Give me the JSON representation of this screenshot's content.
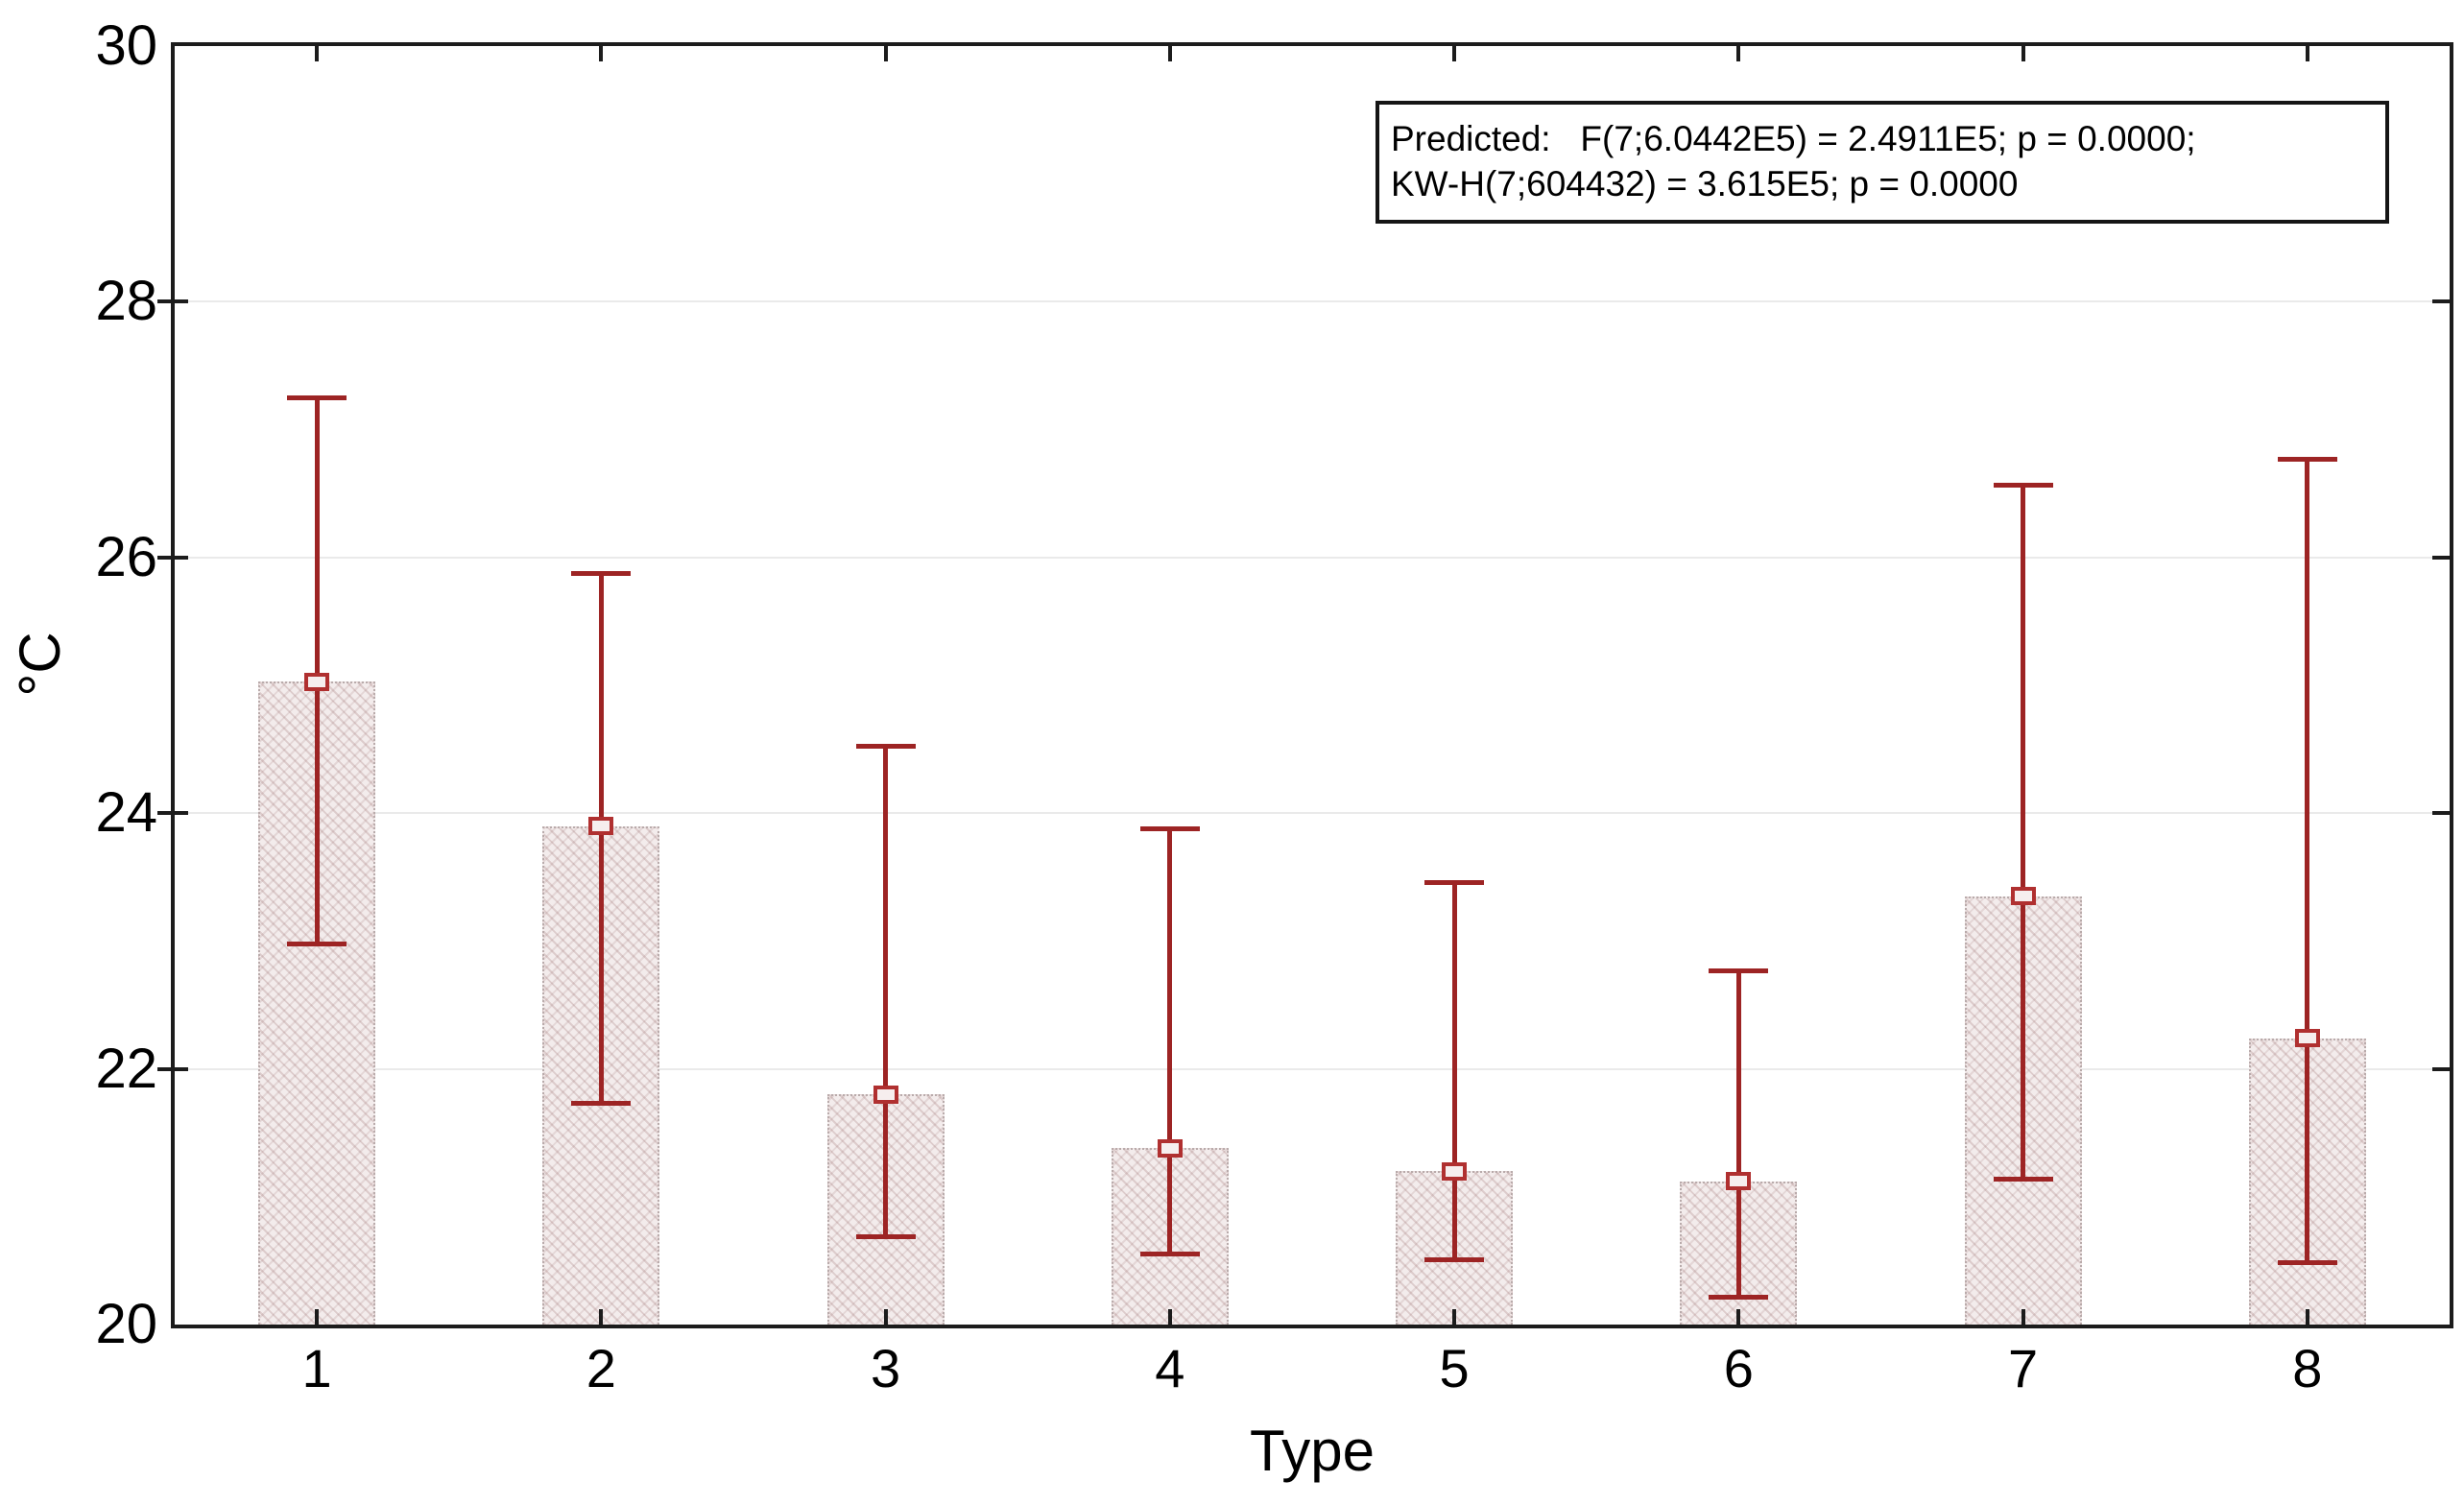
{
  "chart_data": {
    "type": "bar",
    "title": "",
    "xlabel": "Type",
    "ylabel": "°C",
    "categories": [
      "1",
      "2",
      "3",
      "4",
      "5",
      "6",
      "7",
      "8"
    ],
    "series": [
      {
        "name": "mean",
        "values": [
          25.03,
          23.9,
          21.8,
          21.38,
          21.2,
          21.12,
          23.35,
          22.24
        ]
      },
      {
        "name": "whisker_low",
        "values": [
          22.97,
          21.73,
          20.68,
          20.55,
          20.5,
          20.21,
          21.13,
          20.48
        ]
      },
      {
        "name": "whisker_high",
        "values": [
          27.25,
          25.88,
          24.53,
          23.88,
          23.46,
          22.77,
          26.57,
          26.77
        ]
      }
    ],
    "ylim": [
      20,
      30
    ],
    "yticks": [
      20,
      22,
      24,
      26,
      28,
      30
    ],
    "grid": true,
    "legend_position": "none",
    "annotation": {
      "line1": "Predicted:   F(7;6.0442E5) = 2.4911E5; p = 0.0000;",
      "line2": "KW-H(7;604432) = 3.615E5; p = 0.0000"
    },
    "colors": {
      "error_bar": "#9d2424",
      "marker_border": "#b03030",
      "marker_fill": "#f6eeee",
      "bar_fill": "#f3ecec",
      "bar_border": "#b9abab",
      "gridline": "#eaeaea",
      "axis": "#1c1c1c",
      "background": "#ffffff"
    }
  }
}
